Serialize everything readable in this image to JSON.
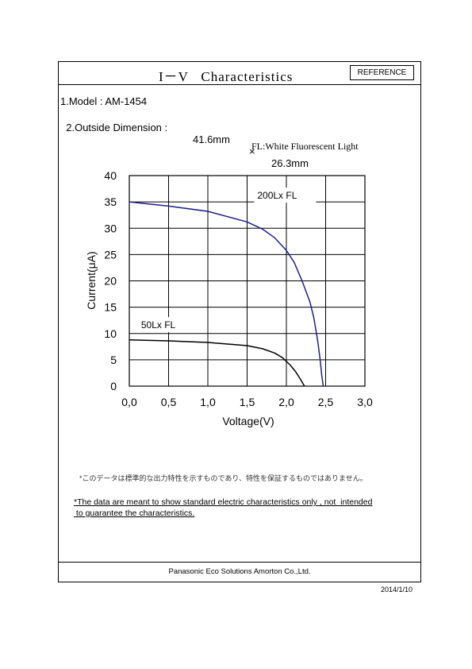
{
  "header": {
    "title": "I－V   Characteristics",
    "reference_label": "REFERENCE"
  },
  "specs": {
    "model": "1.Model : AM-1454",
    "dimension_label": "2.Outside Dimension :",
    "dimension_width": "41.6mm",
    "dimension_times": "×",
    "dimension_height": "26.3mm"
  },
  "fl_note": "FL:White Fluorescent Light",
  "chart_data": {
    "type": "line",
    "xlabel": "Voltage(V)",
    "ylabel": "Current(μA)",
    "xlim": [
      0,
      3
    ],
    "ylim": [
      0,
      40
    ],
    "x_ticks": [
      "0.0",
      "0.5",
      "1.0",
      "1.5",
      "2.0",
      "2.5",
      "3.0"
    ],
    "y_ticks": [
      "0",
      "5",
      "10",
      "15",
      "20",
      "25",
      "30",
      "35",
      "40"
    ],
    "grid": true,
    "series": [
      {
        "name": "200Lx FL",
        "color": "#1f1f8f",
        "x": [
          0.0,
          0.5,
          1.0,
          1.5,
          1.7,
          1.85,
          2.0,
          2.1,
          2.2,
          2.3,
          2.35,
          2.4,
          2.43,
          2.45,
          2.47
        ],
        "y": [
          35.0,
          34.2,
          33.2,
          31.2,
          29.8,
          28.2,
          25.8,
          23.5,
          20.0,
          16.0,
          13.0,
          8.5,
          5.0,
          2.0,
          0.0
        ]
      },
      {
        "name": "50Lx  FL",
        "color": "#000000",
        "x": [
          0.0,
          0.5,
          1.0,
          1.5,
          1.7,
          1.85,
          1.95,
          2.05,
          2.12,
          2.18,
          2.23
        ],
        "y": [
          8.8,
          8.6,
          8.3,
          7.7,
          7.1,
          6.3,
          5.4,
          4.0,
          2.7,
          1.3,
          0.0
        ]
      }
    ]
  },
  "notes": {
    "japanese": "*このデータは標準的な出力特性を示すものであり、特性を保証するものではありません。",
    "disclaimer_line1": "*The data are meant to show standard electric characteristics only , not  intended",
    "disclaimer_line2": " to guarantee the characteristics."
  },
  "footer": {
    "company": "Panasonic Eco Solutions Amorton Co.,Ltd.",
    "date": "2014/1/10"
  }
}
